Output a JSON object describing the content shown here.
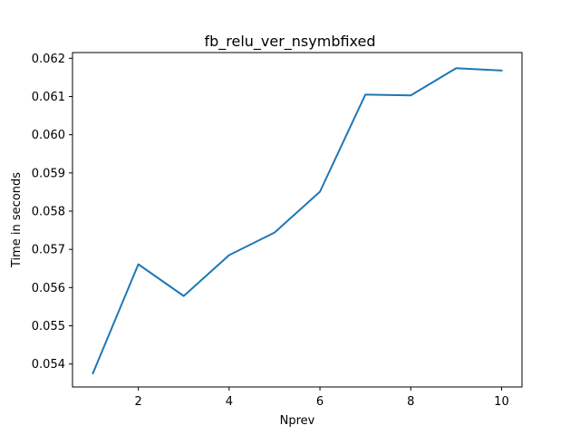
{
  "chart_data": {
    "type": "line",
    "title": "fb_relu_ver_nsymbfixed",
    "xlabel": "Nprev",
    "ylabel": "Time in seconds",
    "xlim": [
      0.55,
      10.45
    ],
    "ylim": [
      0.0534,
      0.06215
    ],
    "xticks": [
      2,
      4,
      6,
      8,
      10
    ],
    "xtick_labels": [
      "2",
      "4",
      "6",
      "8",
      "10"
    ],
    "yticks": [
      0.054,
      0.055,
      0.056,
      0.057,
      0.058,
      0.059,
      0.06,
      0.061,
      0.062
    ],
    "ytick_labels": [
      "0.054",
      "0.055",
      "0.056",
      "0.057",
      "0.058",
      "0.059",
      "0.060",
      "0.061",
      "0.062"
    ],
    "grid": false,
    "legend": "none",
    "series": [
      {
        "color": "#1f77b4",
        "x": [
          1,
          2,
          3,
          4,
          5,
          6,
          7,
          8,
          9,
          10
        ],
        "y": [
          0.05376,
          0.05661,
          0.05578,
          0.05685,
          0.05744,
          0.05851,
          0.06105,
          0.06103,
          0.06174,
          0.06168
        ]
      }
    ]
  }
}
